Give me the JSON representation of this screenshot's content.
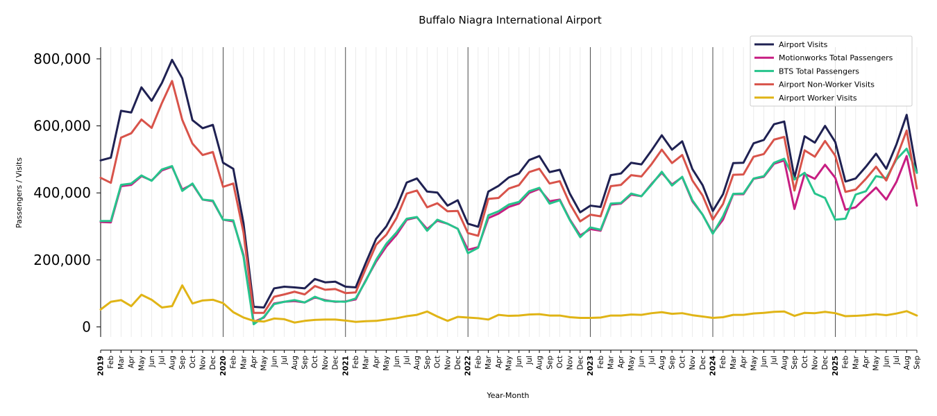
{
  "chart_data": {
    "type": "line",
    "title": "Buffalo Niagra International Airport",
    "xlabel": "Year-Month",
    "ylabel": "Passengers / Visits",
    "ylim": [
      -30000,
      835000
    ],
    "yticks": [
      0,
      200000,
      400000,
      600000,
      800000
    ],
    "ytick_labels": [
      "0",
      "200,000",
      "400,000",
      "600,000",
      "800,000"
    ],
    "x_start": "2019-01",
    "x_end": "2025-09",
    "x_tick_labels": [
      "2019",
      "Feb",
      "Mar",
      "Apr",
      "May",
      "Jun",
      "Jul",
      "Aug",
      "Sep",
      "Oct",
      "Nov",
      "Dec",
      "2020",
      "Feb",
      "Mar",
      "Apr",
      "May",
      "Jun",
      "Jul",
      "Aug",
      "Sep",
      "Oct",
      "Nov",
      "Dec",
      "2021",
      "Feb",
      "Mar",
      "Apr",
      "May",
      "Jun",
      "Jul",
      "Aug",
      "Sep",
      "Oct",
      "Nov",
      "Dec",
      "2022",
      "Feb",
      "Mar",
      "Apr",
      "May",
      "Jun",
      "Jul",
      "Aug",
      "Sep",
      "Oct",
      "Nov",
      "Dec",
      "2023",
      "Feb",
      "Mar",
      "Apr",
      "May",
      "Jun",
      "Jul",
      "Aug",
      "Sep",
      "Oct",
      "Nov",
      "Dec",
      "2024",
      "Feb",
      "Mar",
      "Apr",
      "May",
      "Jun",
      "Jul",
      "Aug",
      "Sep",
      "Oct",
      "Nov",
      "Dec",
      "2025",
      "Feb",
      "Mar",
      "Apr",
      "May",
      "Jun",
      "Jul",
      "Aug",
      "Sep"
    ],
    "year_lines": [
      "2020-01",
      "2021-01",
      "2022-01",
      "2023-01",
      "2024-01",
      "2025-01"
    ],
    "grid": "vertical monthly",
    "legend_position": "top-right",
    "series": [
      {
        "name": "Airport Visits",
        "color": "#1f2152",
        "values": [
          497000,
          505000,
          645000,
          640000,
          715000,
          675000,
          728000,
          797000,
          742000,
          617000,
          593000,
          603000,
          490000,
          472000,
          310000,
          60000,
          58000,
          115000,
          120000,
          118000,
          115000,
          143000,
          133000,
          135000,
          120000,
          118000,
          192000,
          263000,
          300000,
          357000,
          431000,
          443000,
          404000,
          401000,
          362000,
          378000,
          308000,
          299000,
          404000,
          421000,
          446000,
          458000,
          498000,
          510000,
          462000,
          469000,
          397000,
          342000,
          362000,
          358000,
          453000,
          458000,
          490000,
          485000,
          527000,
          572000,
          529000,
          554000,
          471000,
          423000,
          346000,
          396000,
          489000,
          490000,
          548000,
          558000,
          605000,
          613000,
          445000,
          569000,
          550000,
          600000,
          552000,
          434000,
          443000,
          478000,
          517000,
          472000,
          545000,
          633000,
          460000
        ]
      },
      {
        "name": "Motionworks Total Passengers",
        "color": "#c71e82",
        "values": [
          313000,
          312000,
          420000,
          424000,
          450000,
          437000,
          467000,
          478000,
          410000,
          426000,
          380000,
          375000,
          320000,
          315000,
          215000,
          15000,
          28000,
          70000,
          75000,
          77000,
          73000,
          88000,
          80000,
          75000,
          76000,
          82000,
          140000,
          195000,
          240000,
          275000,
          320000,
          327000,
          292000,
          317000,
          308000,
          293000,
          230000,
          238000,
          325000,
          338000,
          358000,
          368000,
          400000,
          412000,
          375000,
          380000,
          320000,
          273000,
          292000,
          287000,
          365000,
          368000,
          395000,
          390000,
          427000,
          460000,
          425000,
          447000,
          375000,
          335000,
          280000,
          320000,
          396000,
          396000,
          442000,
          448000,
          487000,
          497000,
          352000,
          457000,
          442000,
          484000,
          445000,
          350000,
          357000,
          387000,
          416000,
          380000,
          433000,
          510000,
          362000
        ]
      },
      {
        "name": "BTS Total Passengers",
        "color": "#26c48c",
        "values": [
          316000,
          316000,
          424000,
          428000,
          452000,
          436000,
          470000,
          480000,
          406000,
          428000,
          380000,
          377000,
          320000,
          318000,
          210000,
          8000,
          30000,
          68000,
          75000,
          80000,
          73000,
          90000,
          78000,
          76000,
          75000,
          85000,
          138000,
          200000,
          248000,
          282000,
          323000,
          328000,
          287000,
          320000,
          308000,
          293000,
          220000,
          236000,
          333000,
          345000,
          365000,
          373000,
          405000,
          415000,
          368000,
          378000,
          318000,
          268000,
          297000,
          290000,
          368000,
          370000,
          398000,
          390000,
          425000,
          463000,
          422000,
          448000,
          378000,
          335000,
          278000,
          330000,
          397000,
          398000,
          443000,
          450000,
          490000,
          502000,
          440000,
          460000,
          398000,
          385000,
          320000,
          323000,
          395000,
          405000,
          450000,
          444000,
          500000,
          532000,
          460000
        ]
      },
      {
        "name": "Airport Non-Worker Visits",
        "color": "#d8534a",
        "values": [
          445000,
          430000,
          565000,
          578000,
          619000,
          594000,
          668000,
          734000,
          618000,
          547000,
          513000,
          522000,
          418000,
          428000,
          282000,
          42000,
          42000,
          90000,
          97000,
          105000,
          97000,
          122000,
          111000,
          113000,
          101000,
          103000,
          175000,
          245000,
          275000,
          325000,
          398000,
          407000,
          357000,
          369000,
          345000,
          346000,
          280000,
          272000,
          382000,
          385000,
          413000,
          423000,
          462000,
          472000,
          428000,
          435000,
          367000,
          315000,
          335000,
          330000,
          420000,
          424000,
          453000,
          449000,
          486000,
          529000,
          489000,
          513000,
          437000,
          392000,
          320000,
          367000,
          454000,
          455000,
          508000,
          516000,
          559000,
          567000,
          407000,
          527000,
          508000,
          555000,
          511000,
          403000,
          410000,
          442000,
          478000,
          437000,
          505000,
          586000,
          413000
        ]
      },
      {
        "name": "Airport Worker Visits",
        "color": "#e0b416",
        "values": [
          52000,
          75000,
          80000,
          62000,
          96000,
          81000,
          58000,
          62000,
          124000,
          70000,
          79000,
          81000,
          71000,
          44000,
          28000,
          18000,
          16000,
          25000,
          23000,
          13000,
          18000,
          21000,
          22000,
          22000,
          19000,
          15000,
          17000,
          18000,
          22000,
          26000,
          32000,
          36000,
          46000,
          31000,
          18000,
          30000,
          28000,
          26000,
          22000,
          36000,
          33000,
          34000,
          37000,
          38000,
          34000,
          34000,
          29000,
          27000,
          27000,
          28000,
          34000,
          34000,
          37000,
          36000,
          41000,
          44000,
          39000,
          41000,
          35000,
          31000,
          27000,
          29000,
          36000,
          36000,
          40000,
          42000,
          45000,
          46000,
          33000,
          42000,
          41000,
          45000,
          41000,
          32000,
          33000,
          35000,
          38000,
          35000,
          40000,
          47000,
          34000
        ]
      }
    ]
  }
}
